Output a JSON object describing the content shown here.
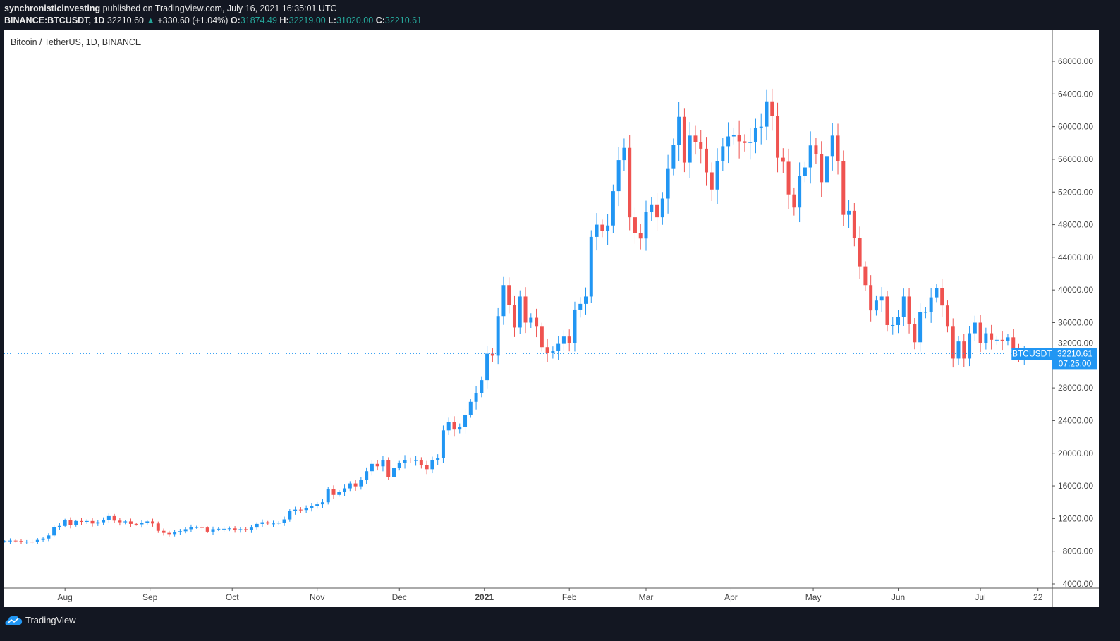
{
  "header": {
    "author": "synchronisticinvesting",
    "published": "published on TradingView.com, July 16, 2021 16:35:01 UTC",
    "symbol": "BINANCE:BTCUSDT, 1D",
    "last": "32210.60",
    "change": "+330.60 (+1.04%)",
    "o_label": "O:",
    "o": "31874.49",
    "h_label": "H:",
    "h": "32219.00",
    "l_label": "L:",
    "l": "31020.00",
    "c_label": "C:",
    "c": "32210.61"
  },
  "chart_title": "Bitcoin / TetherUS, 1D, BINANCE",
  "footer": {
    "brand": "TradingView"
  },
  "colors": {
    "up": "#2196f3",
    "down": "#ef5350",
    "label": "#2196f3"
  },
  "chart_data": {
    "type": "candlestick",
    "title": "Bitcoin / TetherUS, 1D, BINANCE",
    "interval_days": 2,
    "start_date": "2020-07-10",
    "closes": [
      9230,
      9300,
      9250,
      9150,
      9170,
      9160,
      9380,
      9550,
      9930,
      10950,
      11100,
      11800,
      11200,
      11700,
      11600,
      11700,
      11400,
      11550,
      11850,
      12300,
      11750,
      11550,
      11650,
      11350,
      11300,
      11500,
      11650,
      11400,
      10500,
      10250,
      10100,
      10350,
      10450,
      10700,
      10950,
      10950,
      10900,
      10400,
      10700,
      10750,
      10750,
      10800,
      10600,
      10700,
      10600,
      10900,
      11350,
      11550,
      11400,
      11400,
      11500,
      11900,
      12900,
      13100,
      13050,
      13300,
      13550,
      13750,
      14000,
      15600,
      14900,
      15300,
      15700,
      16300,
      15950,
      16700,
      17800,
      18700,
      18400,
      19150,
      17100,
      18200,
      18800,
      19200,
      19150,
      19150,
      18550,
      18050,
      19150,
      19400,
      22800,
      23850,
      22900,
      23250,
      24700,
      26300,
      27400,
      28950,
      32200,
      31950,
      36800,
      40600,
      38200,
      35400,
      39200,
      36000,
      36600,
      35500,
      33000,
      32300,
      32500,
      33400,
      34300,
      33500,
      37600,
      38300,
      39200,
      46500,
      48000,
      47200,
      47900,
      52100,
      55900,
      57400,
      48900,
      47000,
      46300,
      49600,
      50400,
      48900,
      51200,
      54900,
      57800,
      61200,
      55600,
      58900,
      58100,
      57300,
      54400,
      52300,
      55800,
      57600,
      58800,
      59000,
      58200,
      58000,
      58100,
      59800,
      60000,
      63100,
      61300,
      56200,
      55700,
      51700,
      50100,
      54000,
      55000,
      57700,
      56600,
      53200,
      56400,
      58900,
      55800,
      49200,
      49700,
      46400,
      42900,
      40600,
      37500,
      38700,
      39200,
      35700,
      35700,
      36700,
      39200,
      35800,
      33600,
      37300,
      37300,
      39100,
      40200,
      38100,
      35500,
      31600,
      33700,
      31600,
      34700,
      36000,
      33500,
      34700,
      33900,
      33900,
      33800,
      34200,
      32800,
      31870,
      32210.61
    ],
    "y_ticks": [
      "4000.00",
      "8000.00",
      "12000.00",
      "16000.00",
      "20000.00",
      "24000.00",
      "28000.00",
      "32000.00",
      "36000.00",
      "40000.00",
      "44000.00",
      "48000.00",
      "52000.00",
      "56000.00",
      "60000.00",
      "64000.00",
      "68000.00"
    ],
    "x_ticks": [
      "Aug",
      "Sep",
      "Oct",
      "Nov",
      "Dec",
      "2021",
      "Feb",
      "Mar",
      "Apr",
      "May",
      "Jun",
      "Jul",
      "22"
    ],
    "ylim": [
      4000,
      68000
    ],
    "last_price_label": {
      "symbol": "BTCUSDT",
      "price": "32210.61",
      "countdown": "07:25:00"
    }
  }
}
